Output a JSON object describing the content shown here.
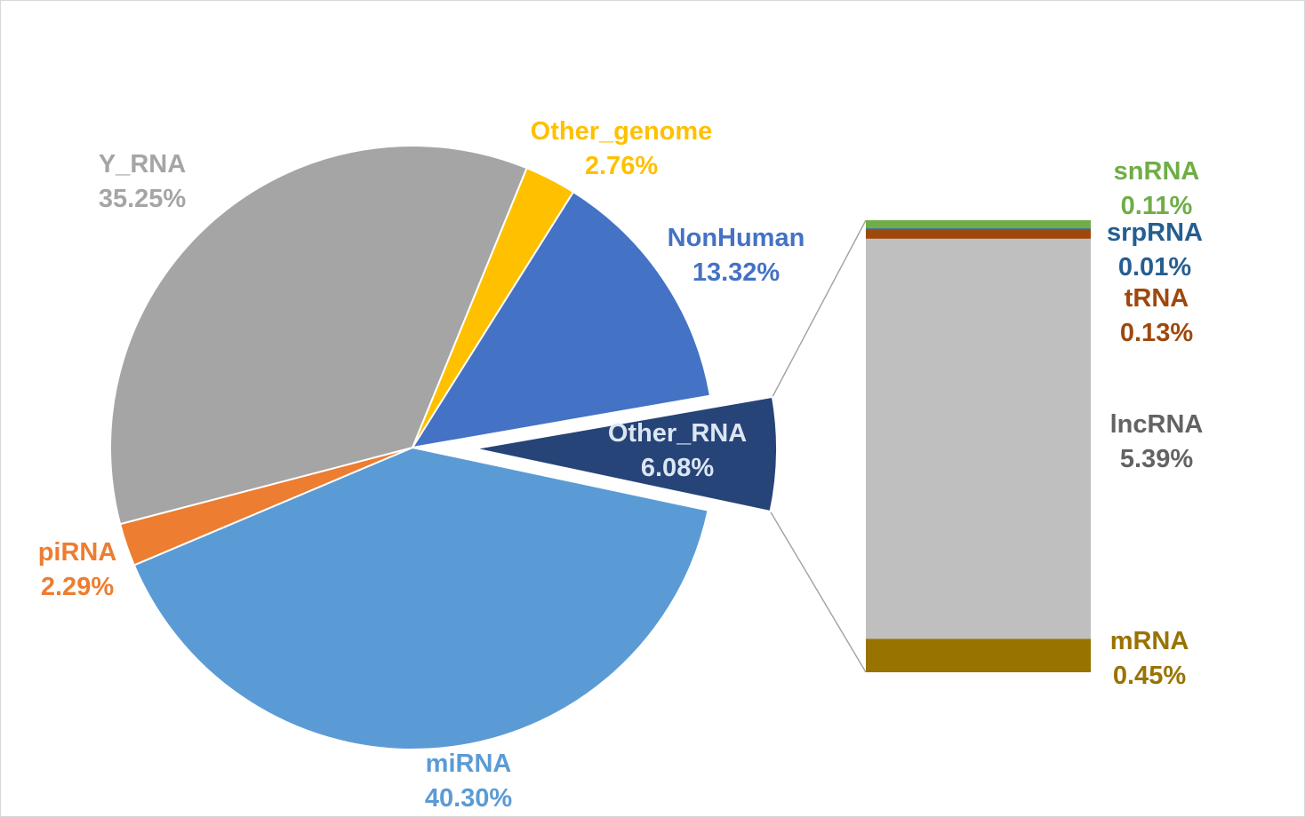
{
  "chart_data": {
    "type": "bar-of-pie",
    "pie": {
      "slices": [
        {
          "name": "miRNA",
          "label": "miRNA",
          "value": 40.3,
          "value_label": "40.30%",
          "color": "#5b9bd5",
          "label_color": "#5b9bd5"
        },
        {
          "name": "piRNA",
          "label": "piRNA",
          "value": 2.29,
          "value_label": "2.29%",
          "color": "#ed7d31",
          "label_color": "#ed7d31"
        },
        {
          "name": "Y_RNA",
          "label": "Y_RNA",
          "value": 35.25,
          "value_label": "35.25%",
          "color": "#a5a5a5",
          "label_color": "#a5a5a5"
        },
        {
          "name": "Other_genome",
          "label": "Other_genome",
          "value": 2.76,
          "value_label": "2.76%",
          "color": "#ffc000",
          "label_color": "#ffc000"
        },
        {
          "name": "NonHuman",
          "label": "NonHuman",
          "value": 13.32,
          "value_label": "13.32%",
          "color": "#4472c4",
          "label_color": "#4472c4"
        },
        {
          "name": "Other_RNA",
          "label": "Other_RNA",
          "value": 6.08,
          "value_label": "6.08%",
          "color": "#264478",
          "label_color": "#dce6f2",
          "exploded": true
        }
      ]
    },
    "bar": {
      "segments": [
        {
          "name": "snRNA",
          "label": "snRNA",
          "value": 0.11,
          "value_label": "0.11%",
          "color": "#70ad47",
          "label_color": "#70ad47"
        },
        {
          "name": "srpRNA",
          "label": "srpRNA",
          "value": 0.01,
          "value_label": "0.01%",
          "color": "#255e91",
          "label_color": "#255e91"
        },
        {
          "name": "tRNA",
          "label": "tRNA",
          "value": 0.13,
          "value_label": "0.13%",
          "color": "#9e480e",
          "label_color": "#9e480e"
        },
        {
          "name": "lncRNA",
          "label": "lncRNA",
          "value": 5.39,
          "value_label": "5.39%",
          "color": "#bfbfbf",
          "label_color": "#636363"
        },
        {
          "name": "mRNA",
          "label": "mRNA",
          "value": 0.45,
          "value_label": "0.45%",
          "color": "#997300",
          "label_color": "#997300"
        }
      ]
    }
  }
}
